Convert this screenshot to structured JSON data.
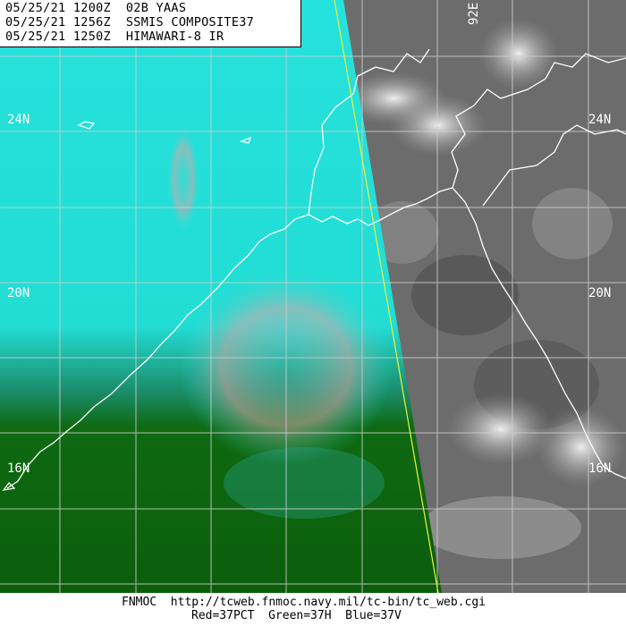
{
  "header": {
    "line1": "05/25/21 1200Z  02B YAAS",
    "line2": "05/25/21 1256Z  SSMIS COMPOSITE37",
    "line3": "05/25/21 1250Z  HIMAWARI-8 IR"
  },
  "grid_labels": {
    "lon_92e": "92E",
    "lat_24n_left": "24N",
    "lat_24n_right": "24N",
    "lat_20n_left": "20N",
    "lat_20n_right": "20N",
    "lat_16n_left": "16N",
    "lat_16n_right": "16N"
  },
  "footer": {
    "source": "FNMOC  http://tcweb.fnmoc.navy.mil/tc-bin/tc_web.cgi",
    "legend": "Red=37PCT  Green=37H  Blue=37V"
  },
  "colors": {
    "ssmis_cyan": "#24e4dc",
    "ssmis_green": "#0f6a10",
    "ir_gray": "#6f6f6f",
    "grid_line": "#c8c8c8",
    "coastline": "#ffffff",
    "swath_edge": "#ffff40"
  }
}
